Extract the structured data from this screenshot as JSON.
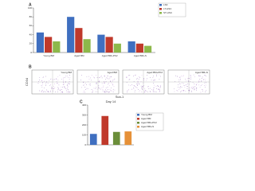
{
  "panel_labels": [
    "A",
    "B",
    "C"
  ],
  "flow": {
    "x_label": "Sca-1",
    "y_label": "CD34",
    "titles": [
      "Young BM",
      "Aged BM",
      "Aged BM+PK2",
      "Aged BM+S"
    ]
  },
  "chart_data": [
    {
      "type": "bar",
      "categories": [
        "Young BM",
        "Aged BM",
        "Aged BM+PK2",
        "Aged BM+S"
      ],
      "series": [
        {
          "name": "LSK",
          "color": "#3f6fc0",
          "values": [
            45,
            80,
            40,
            25
          ]
        },
        {
          "name": "LT-HSC",
          "color": "#c0392b",
          "values": [
            35,
            55,
            35,
            20
          ]
        },
        {
          "name": "ST-HSC",
          "color": "#8db84a",
          "values": [
            25,
            30,
            20,
            15
          ]
        }
      ],
      "ylim": [
        0,
        100
      ],
      "yticks": [
        0,
        20,
        40,
        60,
        80,
        100
      ]
    },
    {
      "type": "bar",
      "title": "Day 14",
      "categories": [
        "Young BM",
        "Aged BM",
        "Aged BM+PK2",
        "Aged BM+S"
      ],
      "values": [
        110,
        290,
        130,
        135
      ],
      "colors": [
        "#3f6fc0",
        "#c0392b",
        "#6b8e3a",
        "#e69138"
      ],
      "ylim": [
        0,
        400
      ],
      "yticks": [
        0,
        100,
        200,
        300,
        400
      ]
    }
  ]
}
